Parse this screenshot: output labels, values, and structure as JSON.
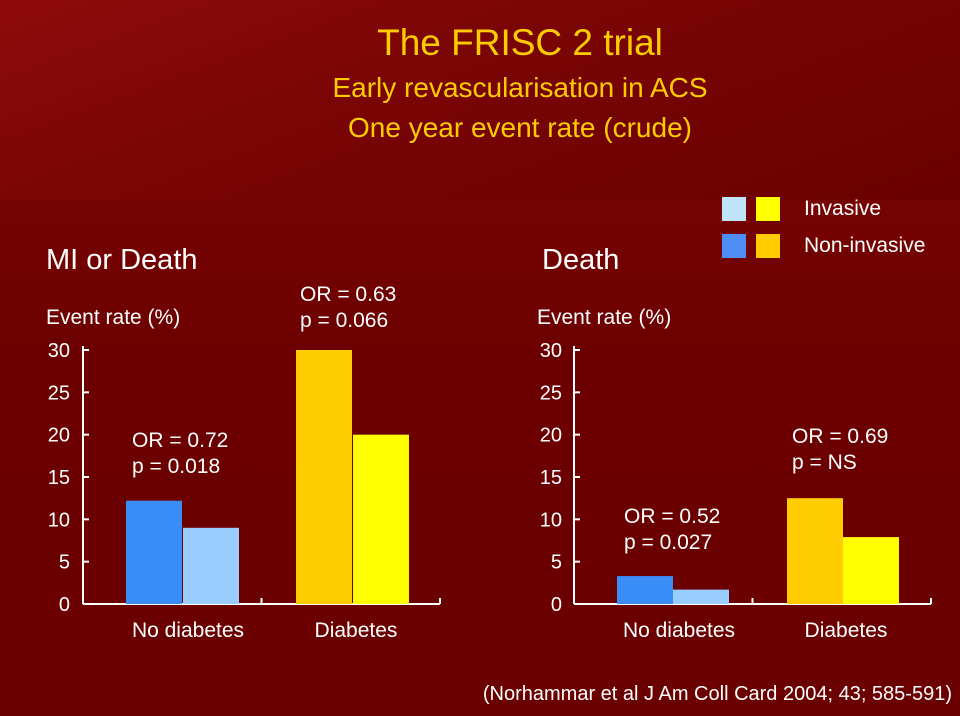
{
  "title": "The FRISC 2 trial",
  "subtitle_line1": "Early revascularisation in ACS",
  "subtitle_line2": "One year event rate (crude)",
  "legend": {
    "row1_label": "Invasive",
    "row2_label": "Non-invasive",
    "swatches": {
      "invasive_no_diabetes": "#bfe4f7",
      "invasive_diabetes": "#ffff00",
      "noninvasive_no_diabetes": "#4f8ff5",
      "noninvasive_diabetes": "#ffcc00"
    }
  },
  "source": "(Norhammar et al J Am Coll Card 2004; 43; 585-591)",
  "chart_data": [
    {
      "type": "bar",
      "title": "MI or Death",
      "ylabel": "Event rate (%)",
      "ylim": [
        0,
        30
      ],
      "yticks": [
        "0",
        "5",
        "10",
        "15",
        "20",
        "25",
        "30"
      ],
      "categories": [
        "No diabetes",
        "Diabetes"
      ],
      "bars": [
        {
          "category": "No diabetes",
          "value": 12.2,
          "color": "#3a8cf7"
        },
        {
          "category": "No diabetes",
          "value": 9.0,
          "color": "#99ccff"
        },
        {
          "category": "Diabetes",
          "value": 30.0,
          "color": "#ffcc00"
        },
        {
          "category": "Diabetes",
          "value": 20.0,
          "color": "#ffff00"
        }
      ],
      "annotations": [
        {
          "or": "OR = 0.72",
          "p": "p = 0.018"
        },
        {
          "or": "OR = 0.63",
          "p": "p = 0.066"
        }
      ]
    },
    {
      "type": "bar",
      "title": "Death",
      "ylabel": "Event rate (%)",
      "ylim": [
        0,
        30
      ],
      "yticks": [
        "0",
        "5",
        "10",
        "15",
        "20",
        "25",
        "30"
      ],
      "categories": [
        "No diabetes",
        "Diabetes"
      ],
      "bars": [
        {
          "category": "No diabetes",
          "value": 3.3,
          "color": "#3a8cf7"
        },
        {
          "category": "No diabetes",
          "value": 1.7,
          "color": "#99ccff"
        },
        {
          "category": "Diabetes",
          "value": 12.5,
          "color": "#ffcc00"
        },
        {
          "category": "Diabetes",
          "value": 7.9,
          "color": "#ffff00"
        }
      ],
      "annotations": [
        {
          "or": "OR = 0.52",
          "p": "p = 0.027"
        },
        {
          "or": "OR = 0.69",
          "p": "p = NS"
        }
      ]
    }
  ]
}
